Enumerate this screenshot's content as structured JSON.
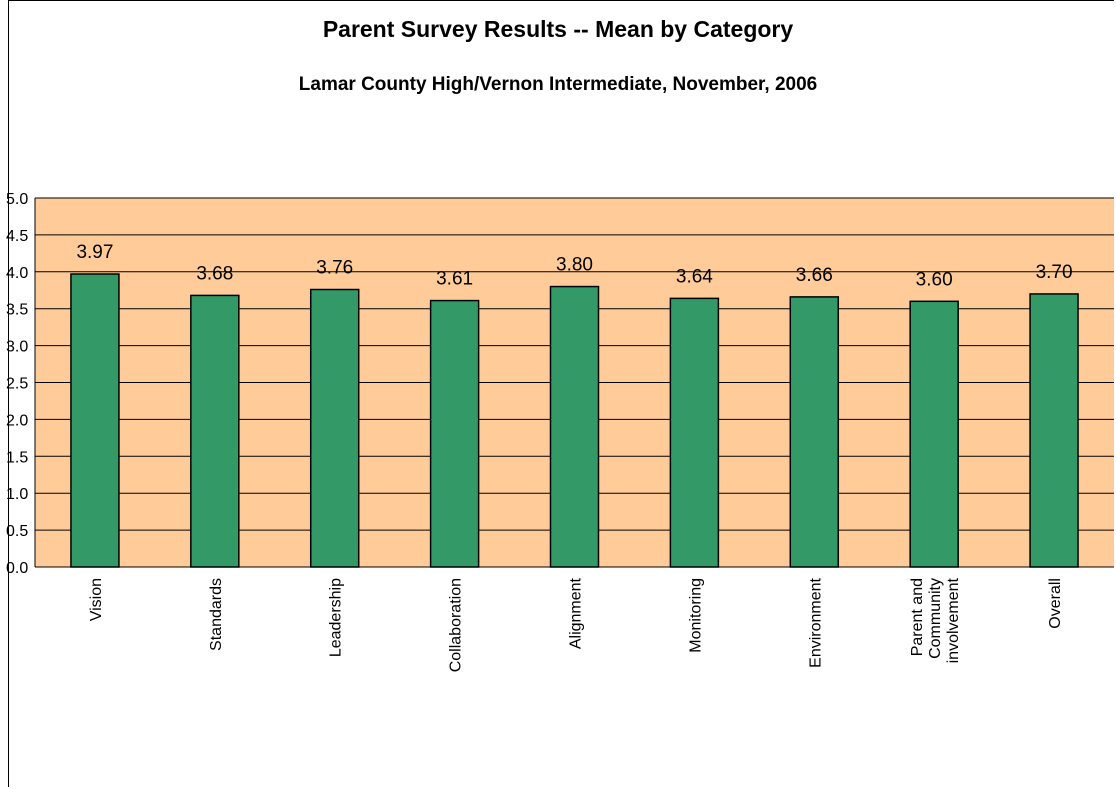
{
  "chart_data": {
    "type": "bar",
    "title": "Parent Survey Results -- Mean by Category",
    "subtitle": "Lamar County High/Vernon Intermediate, November, 2006",
    "categories": [
      "Vision",
      "Standards",
      "Leadership",
      "Collaboration",
      "Alignment",
      "Monitoring",
      "Environment",
      "Parent and Community involvement",
      "Overall"
    ],
    "category_lines": [
      [
        "Vision"
      ],
      [
        "Standards"
      ],
      [
        "Leadership"
      ],
      [
        "Collaboration"
      ],
      [
        "Alignment"
      ],
      [
        "Monitoring"
      ],
      [
        "Environment"
      ],
      [
        "Parent and",
        "Community",
        "involvement"
      ],
      [
        "Overall"
      ]
    ],
    "values": [
      3.97,
      3.68,
      3.76,
      3.61,
      3.8,
      3.64,
      3.66,
      3.6,
      3.7
    ],
    "value_labels": [
      "3.97",
      "3.68",
      "3.76",
      "3.61",
      "3.80",
      "3.64",
      "3.66",
      "3.60",
      "3.70"
    ],
    "ylim": [
      0,
      5
    ],
    "yticks": [
      "0.0",
      "0.5",
      "1.0",
      "1.5",
      "2.0",
      "2.5",
      "3.0",
      "3.5",
      "4.0",
      "4.5",
      "5.0"
    ],
    "grid": true,
    "legend": "none",
    "colors": {
      "plot_background": "#FFCC99",
      "bar_fill": "#339966",
      "bar_stroke": "#000000",
      "grid": "#000000"
    }
  }
}
